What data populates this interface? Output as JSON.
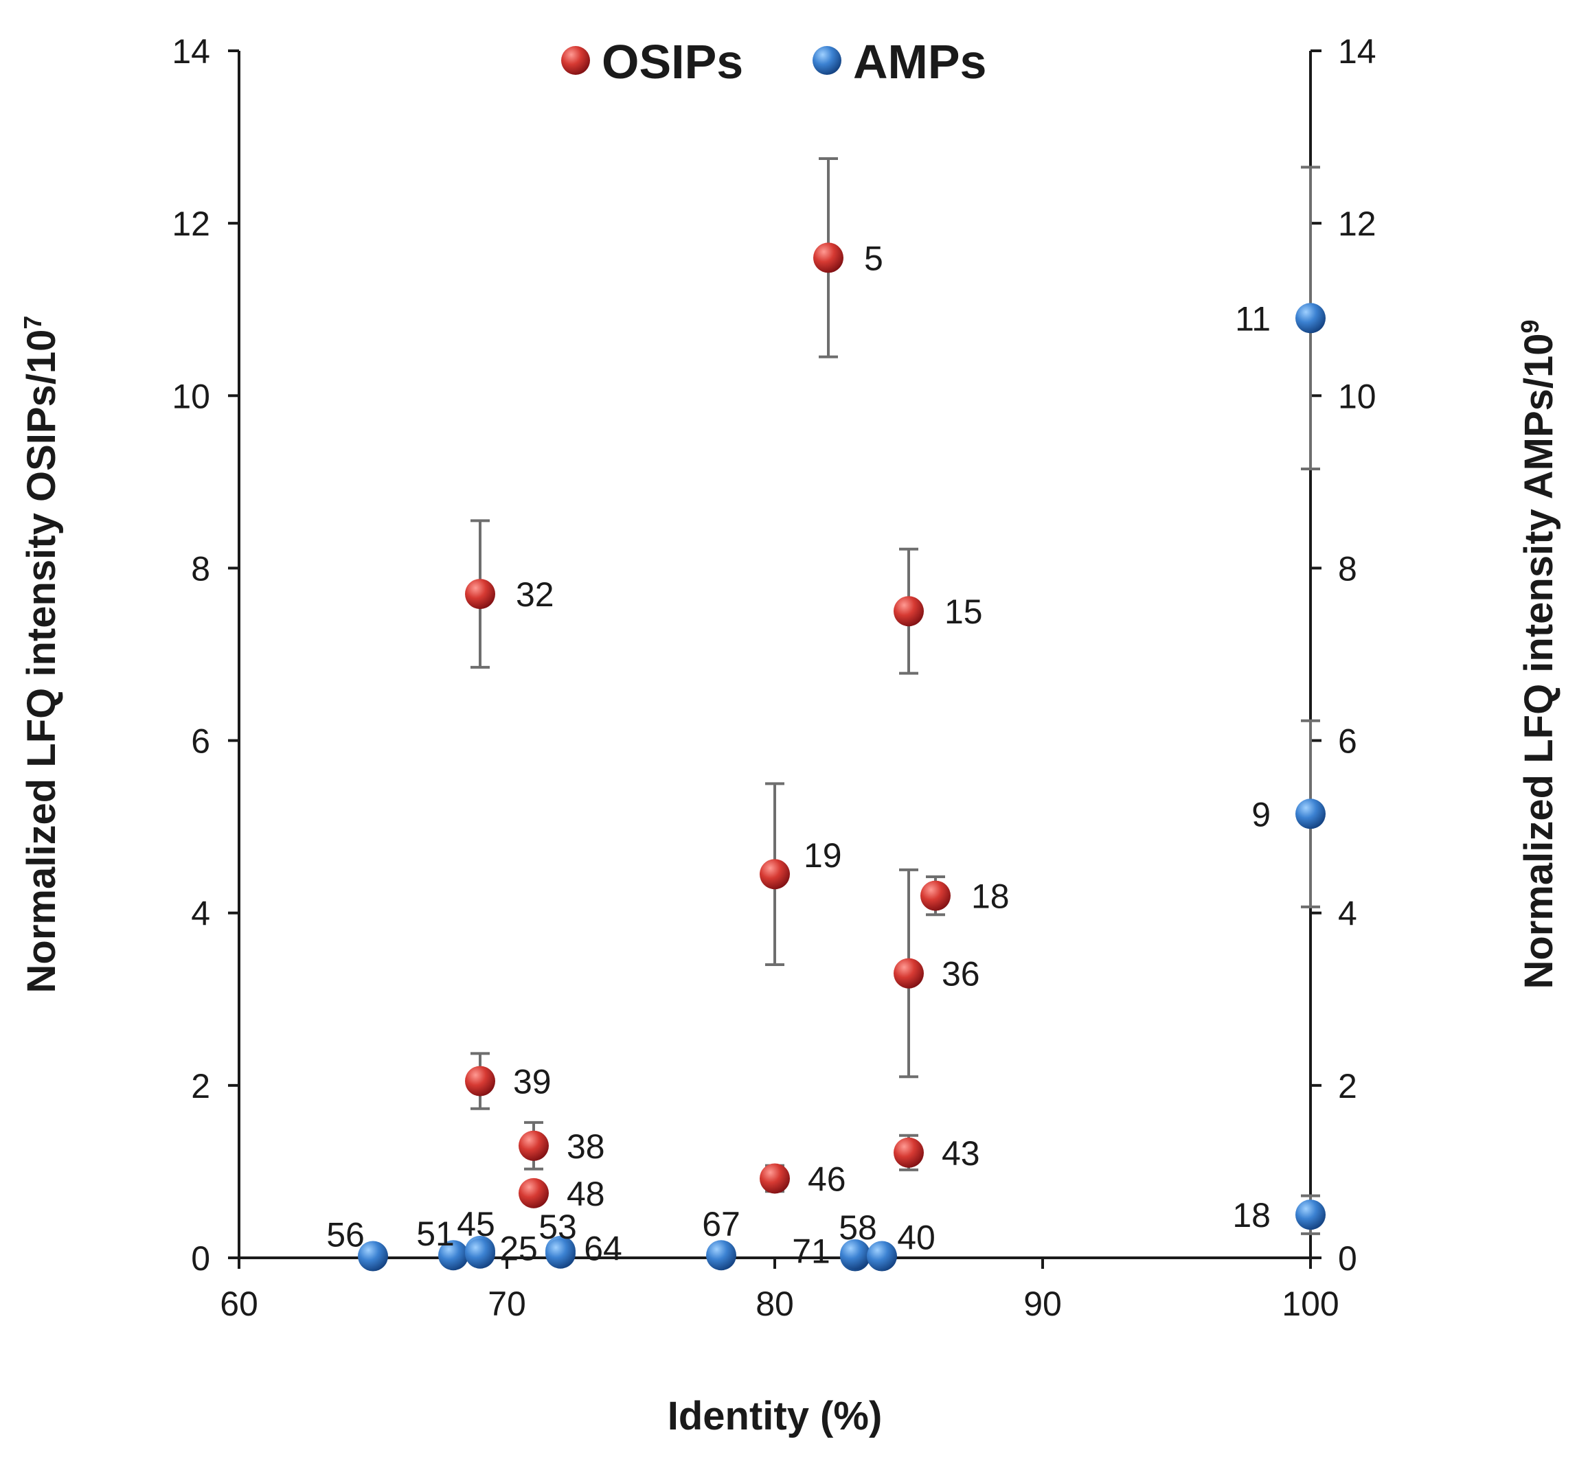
{
  "chart_data": {
    "type": "scatter",
    "title": "",
    "xlabel": "Identity (%)",
    "ylabel_left": {
      "base": "Normalized LFQ intensity OSIPs/10",
      "sup": "7"
    },
    "ylabel_right": {
      "base": "Normalized LFQ intensity AMPs/10",
      "sup": "9"
    },
    "xlim": [
      60,
      100
    ],
    "xticks": [
      60,
      70,
      80,
      90,
      100
    ],
    "ylim": [
      0,
      14
    ],
    "yticks": [
      0,
      2,
      4,
      6,
      8,
      10,
      12,
      14
    ],
    "legend_position": "top-center",
    "grid": false,
    "colors": {
      "OSIPs": "#c0272d",
      "AMPs": "#2f72c4",
      "error_bar": "#6e6e6e"
    },
    "series": [
      {
        "name": "OSIPs",
        "axis": "left",
        "points": [
          {
            "x": 82,
            "y": 11.6,
            "err": 1.15,
            "label": "5"
          },
          {
            "x": 69,
            "y": 7.7,
            "err": 0.85,
            "label": "32"
          },
          {
            "x": 85,
            "y": 7.5,
            "err": 0.72,
            "label": "15"
          },
          {
            "x": 80,
            "y": 4.45,
            "err": 1.05,
            "label": "19"
          },
          {
            "x": 86,
            "y": 4.2,
            "err": 0.22,
            "label": "18"
          },
          {
            "x": 85,
            "y": 3.3,
            "err": 1.2,
            "label": "36"
          },
          {
            "x": 69,
            "y": 2.05,
            "err": 0.32,
            "label": "39"
          },
          {
            "x": 71,
            "y": 1.3,
            "err": 0.27,
            "label": "38"
          },
          {
            "x": 85,
            "y": 1.22,
            "err": 0.2,
            "label": "43"
          },
          {
            "x": 80,
            "y": 0.92,
            "err": 0.15,
            "label": "46"
          },
          {
            "x": 71,
            "y": 0.75,
            "err": 0.05,
            "label": "48"
          }
        ]
      },
      {
        "name": "AMPs",
        "axis": "right",
        "points": [
          {
            "x": 100,
            "y": 10.9,
            "err": 1.75,
            "label": "11"
          },
          {
            "x": 100,
            "y": 5.15,
            "err": 1.08,
            "label": "9"
          },
          {
            "x": 100,
            "y": 0.5,
            "err": 0.22,
            "label": "18"
          },
          {
            "x": 65,
            "y": 0.02,
            "err": 0,
            "label": "56"
          },
          {
            "x": 68,
            "y": 0.03,
            "err": 0,
            "label": "51"
          },
          {
            "x": 69,
            "y": 0.08,
            "err": 0,
            "label": "45"
          },
          {
            "x": 69,
            "y": 0.05,
            "err": 0,
            "label": "25"
          },
          {
            "x": 72,
            "y": 0.08,
            "err": 0,
            "label": "53"
          },
          {
            "x": 72,
            "y": 0.05,
            "err": 0,
            "label": "64"
          },
          {
            "x": 78,
            "y": 0.03,
            "err": 0,
            "label": "67"
          },
          {
            "x": 83,
            "y": 0.02,
            "err": 0,
            "label": "71"
          },
          {
            "x": 83,
            "y": 0.04,
            "err": 0,
            "label": "58"
          },
          {
            "x": 84,
            "y": 0.02,
            "err": 0,
            "label": "40"
          }
        ]
      }
    ]
  }
}
